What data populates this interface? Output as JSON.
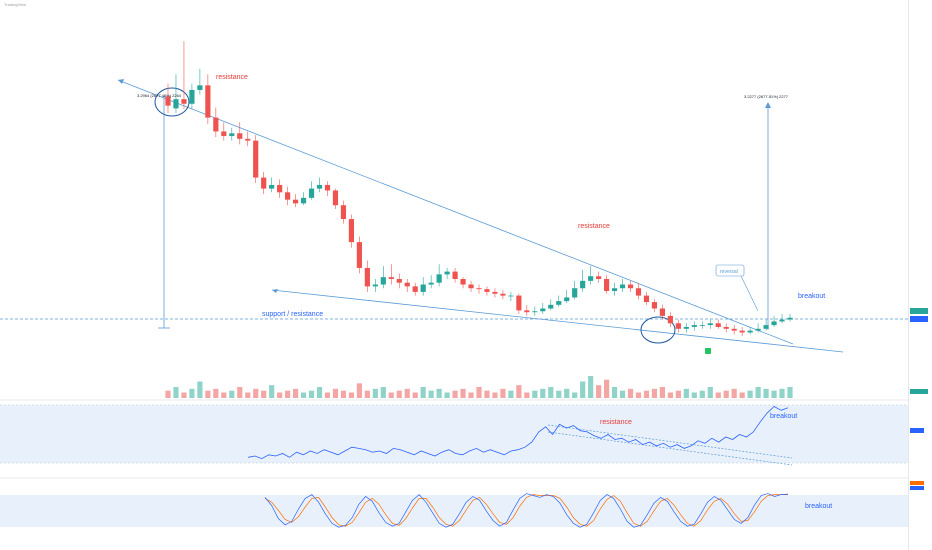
{
  "header": {
    "symbol_line": "TradingView",
    "interval_line": ""
  },
  "annotations": {
    "resistance_top": "resistance",
    "resistance_mid": "resistance",
    "support_resistance": "support / resistance",
    "reversal": "reversal",
    "breakout_price": "breakout",
    "measure_left": "3.2964 (2677.46%) 2264",
    "measure_right": "3.2277 (2677.51%) 2277",
    "rsi_resistance": "resistance",
    "rsi_breakout": "breakout",
    "stoch_breakout": "breakout"
  },
  "colors": {
    "up": "#26a69a",
    "down": "#ef5350",
    "trendline": "#5b9bd5",
    "annotation_red": "#e53935",
    "annotation_blue": "#2962ff",
    "band_fill": "#e8f1fb",
    "rsi_line": "#2962ff",
    "stoch_k": "#2962ff",
    "stoch_d": "#ff6d00"
  },
  "chart_data": {
    "type": "candlestick",
    "price": {
      "opens": [
        3.18,
        3.05,
        3.15,
        3.1,
        3.25,
        3.3,
        2.95,
        2.8,
        2.75,
        2.78,
        2.72,
        2.7,
        2.3,
        2.18,
        2.22,
        2.14,
        2.06,
        2.02,
        2.08,
        2.18,
        2.22,
        2.16,
        2.0,
        1.85,
        1.6,
        1.32,
        1.12,
        1.14,
        1.22,
        1.2,
        1.16,
        1.12,
        1.06,
        1.14,
        1.16,
        1.25,
        1.28,
        1.2,
        1.14,
        1.1,
        1.09,
        1.06,
        1.04,
        1.02,
        1.02,
        0.86,
        0.84,
        0.85,
        0.88,
        0.92,
        0.96,
        1.0,
        1.1,
        1.18,
        1.23,
        1.2,
        1.07,
        1.1,
        1.14,
        1.1,
        1.02,
        0.95,
        0.88,
        0.8,
        0.72,
        0.66,
        0.68,
        0.7,
        0.7,
        0.72,
        0.68,
        0.66,
        0.64,
        0.62,
        0.64,
        0.66,
        0.7,
        0.74,
        0.76
      ],
      "closes": [
        3.08,
        3.15,
        3.1,
        3.25,
        3.3,
        2.95,
        2.8,
        2.75,
        2.78,
        2.72,
        2.7,
        2.3,
        2.18,
        2.22,
        2.14,
        2.06,
        2.02,
        2.08,
        2.18,
        2.22,
        2.16,
        2.0,
        1.85,
        1.6,
        1.32,
        1.12,
        1.14,
        1.22,
        1.2,
        1.16,
        1.12,
        1.06,
        1.14,
        1.16,
        1.25,
        1.28,
        1.2,
        1.14,
        1.1,
        1.09,
        1.06,
        1.04,
        1.02,
        1.02,
        0.86,
        0.84,
        0.85,
        0.88,
        0.92,
        0.96,
        1.0,
        1.1,
        1.18,
        1.23,
        1.2,
        1.07,
        1.1,
        1.14,
        1.1,
        1.02,
        0.95,
        0.88,
        0.8,
        0.72,
        0.66,
        0.68,
        0.7,
        0.7,
        0.72,
        0.68,
        0.66,
        0.64,
        0.62,
        0.64,
        0.66,
        0.7,
        0.74,
        0.76,
        0.78
      ],
      "highs": [
        3.32,
        3.42,
        3.78,
        3.32,
        3.48,
        3.42,
        3.06,
        2.9,
        2.84,
        2.9,
        2.8,
        2.76,
        2.36,
        2.3,
        2.28,
        2.2,
        2.12,
        2.14,
        2.26,
        2.3,
        2.26,
        2.18,
        2.05,
        1.9,
        1.66,
        1.4,
        1.2,
        1.34,
        1.36,
        1.26,
        1.2,
        1.16,
        1.22,
        1.24,
        1.36,
        1.32,
        1.32,
        1.22,
        1.18,
        1.14,
        1.12,
        1.1,
        1.08,
        1.06,
        1.04,
        0.92,
        0.9,
        0.94,
        0.98,
        1.02,
        1.08,
        1.18,
        1.3,
        1.34,
        1.28,
        1.24,
        1.16,
        1.2,
        1.18,
        1.16,
        1.06,
        0.98,
        0.92,
        0.84,
        0.76,
        0.72,
        0.74,
        0.74,
        0.76,
        0.76,
        0.72,
        0.7,
        0.68,
        0.68,
        0.72,
        0.76,
        0.8,
        0.82,
        0.82
      ],
      "lows": [
        3.0,
        3.0,
        3.04,
        3.05,
        3.2,
        2.88,
        2.74,
        2.7,
        2.7,
        2.66,
        2.64,
        2.24,
        2.12,
        2.14,
        2.08,
        2.0,
        1.98,
        2.0,
        2.06,
        2.14,
        2.1,
        1.96,
        1.8,
        1.54,
        1.26,
        1.06,
        1.06,
        1.1,
        1.14,
        1.1,
        1.06,
        1.02,
        1.02,
        1.1,
        1.12,
        1.2,
        1.16,
        1.1,
        1.06,
        1.04,
        1.02,
        1.0,
        0.98,
        0.96,
        0.82,
        0.8,
        0.8,
        0.82,
        0.86,
        0.9,
        0.94,
        0.98,
        1.06,
        1.14,
        1.16,
        1.04,
        1.02,
        1.06,
        1.06,
        0.98,
        0.92,
        0.84,
        0.76,
        0.68,
        0.62,
        0.62,
        0.64,
        0.66,
        0.66,
        0.66,
        0.62,
        0.6,
        0.58,
        0.6,
        0.62,
        0.64,
        0.68,
        0.72,
        0.74
      ],
      "ylim": [
        0.3,
        3.9
      ]
    },
    "volume": [
      4,
      6,
      3,
      5,
      9,
      4,
      5,
      3,
      4,
      6,
      3,
      5,
      4,
      7,
      3,
      4,
      5,
      3,
      4,
      6,
      3,
      5,
      4,
      3,
      8,
      4,
      5,
      6,
      3,
      4,
      5,
      3,
      6,
      4,
      5,
      3,
      4,
      5,
      3,
      6,
      4,
      3,
      5,
      4,
      7,
      3,
      4,
      5,
      6,
      4,
      5,
      3,
      9,
      12,
      7,
      10,
      6,
      4,
      5,
      3,
      4,
      5,
      6,
      3,
      4,
      5,
      3,
      4,
      6,
      3,
      4,
      5,
      3,
      4,
      6,
      5,
      4,
      5,
      6
    ],
    "rsi": [
      40,
      41,
      39,
      42,
      41,
      43,
      40,
      44,
      42,
      45,
      43,
      46,
      44,
      42,
      45,
      48,
      47,
      46,
      44,
      45,
      43,
      47,
      46,
      44,
      42,
      45,
      43,
      41,
      44,
      46,
      43,
      42,
      45,
      47,
      44,
      46,
      44,
      42,
      45,
      46,
      48,
      52,
      60,
      64,
      58,
      66,
      63,
      65,
      61,
      60,
      57,
      55,
      58,
      54,
      55,
      52,
      54,
      50,
      52,
      49,
      51,
      48,
      50,
      47,
      49,
      53,
      51,
      55,
      52,
      56,
      54,
      58,
      56,
      60,
      68,
      75,
      80,
      77,
      79
    ],
    "stoch_k": [
      72,
      55,
      28,
      15,
      22,
      48,
      70,
      78,
      62,
      38,
      18,
      10,
      14,
      30,
      58,
      74,
      64,
      40,
      20,
      12,
      18,
      42,
      66,
      78,
      62,
      40,
      18,
      10,
      16,
      38,
      62,
      74,
      66,
      44,
      24,
      12,
      20,
      46,
      70,
      80,
      76,
      72,
      78,
      74,
      60,
      36,
      18,
      10,
      16,
      40,
      66,
      78,
      70,
      48,
      22,
      10,
      14,
      36,
      60,
      72,
      64,
      42,
      22,
      12,
      16,
      38,
      62,
      74,
      66,
      46,
      26,
      18,
      30,
      56,
      76,
      80,
      74,
      78,
      79
    ],
    "stoch_d": [
      70,
      62,
      45,
      26,
      20,
      32,
      52,
      70,
      72,
      52,
      30,
      15,
      12,
      20,
      40,
      62,
      70,
      58,
      36,
      18,
      14,
      28,
      50,
      70,
      70,
      52,
      30,
      16,
      12,
      24,
      46,
      66,
      72,
      58,
      38,
      20,
      16,
      30,
      54,
      72,
      78,
      76,
      76,
      76,
      70,
      52,
      30,
      16,
      12,
      24,
      48,
      68,
      76,
      64,
      40,
      18,
      12,
      22,
      44,
      64,
      70,
      56,
      36,
      18,
      12,
      24,
      46,
      64,
      70,
      58,
      38,
      22,
      24,
      42,
      64,
      76,
      78,
      78,
      78
    ]
  }
}
